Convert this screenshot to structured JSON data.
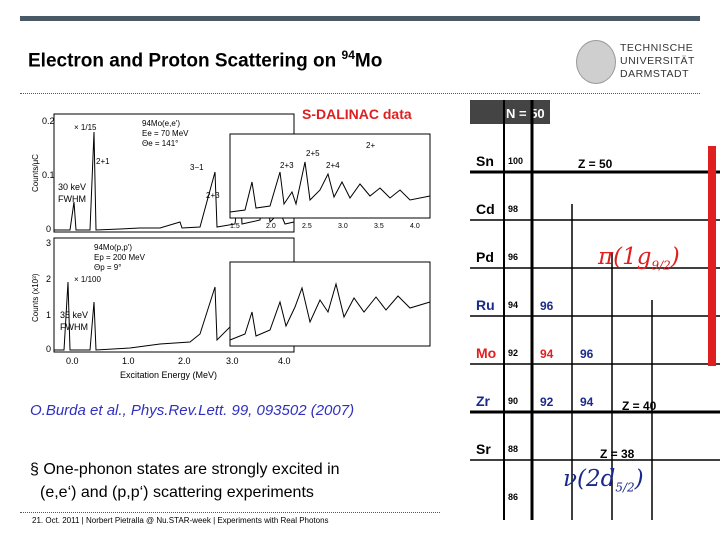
{
  "slide": {
    "title": "Electron and Proton Scattering on ",
    "title_sup": "94",
    "title_tail": "Mo",
    "logo_lines": [
      "TECHNISCHE",
      "UNIVERSITÄT",
      "DARMSTADT"
    ],
    "source_label": "S-DALINAC data",
    "citation": "O.Burda et al., Phys.Rev.Lett. 99, 093502 (2007)",
    "bullet_line1": "§ One-phonon states are strongly excited in",
    "bullet_line2": "(e,e‘) and (p,p‘) scattering experiments",
    "footer": "21. Oct. 2011 | Norbert Pietralla @ Nu.STAR-week | Experiments with Real Photons"
  },
  "spectrum": {
    "upper": {
      "reaction": "94Mo(e,e')",
      "energy": "Ee = 70 MeV",
      "angle": "Θe = 141°",
      "resolution": "30 keV",
      "fwhm": "FWHM",
      "scale": "× 1/15",
      "ylabel": "Counts/μC",
      "yticks": [
        "0.2",
        "0.1",
        "0"
      ],
      "peaks": [
        "2+1",
        "3−1",
        "2+3"
      ]
    },
    "lower": {
      "reaction": "94Mo(p,p')",
      "energy": "Ep = 200 MeV",
      "angle": "Θp = 9°",
      "resolution": "35 keV",
      "fwhm": "FWHM",
      "scale": "× 1/100",
      "ylabel": "Counts (x10³)",
      "yticks": [
        "3",
        "2",
        "1",
        "0"
      ]
    },
    "inset_upper_labels": [
      "2+5",
      "2+",
      "2+4",
      "2+3"
    ],
    "inset_xticks": [
      "1.5",
      "2.0",
      "2.5",
      "3.0",
      "3.5",
      "4.0"
    ],
    "xlabel": "Excitation Energy (MeV)",
    "xticks": [
      "0.0",
      "1.0",
      "2.0",
      "3.0",
      "4.0"
    ]
  },
  "nuclide_chart": {
    "column_header": "N = 50",
    "elements": [
      "Sn",
      "Cd",
      "Pd",
      "Ru",
      "Mo",
      "Zr",
      "Sr"
    ],
    "element_colors": [
      "#000000",
      "#000000",
      "#000000",
      "#1a2a8a",
      "#e02020",
      "#1a2a8a",
      "#000000"
    ],
    "masses_black": [
      "100",
      "98",
      "96",
      "94",
      "92",
      "90",
      "88",
      "86"
    ],
    "cells": [
      {
        "row": 3,
        "col": 1,
        "text": "96",
        "color": "#1a2a8a"
      },
      {
        "row": 4,
        "col": 1,
        "text": "94",
        "color": "#e02020"
      },
      {
        "row": 4,
        "col": 2,
        "text": "96",
        "color": "#1a2a8a"
      },
      {
        "row": 5,
        "col": 1,
        "text": "92",
        "color": "#1a2a8a"
      },
      {
        "row": 5,
        "col": 2,
        "text": "94",
        "color": "#1a2a8a"
      }
    ],
    "z_labels": [
      "Z = 50",
      "Z = 40",
      "Z = 38"
    ],
    "pi_orbital": "π(1g",
    "pi_sub": "9/2",
    "nu_orbital": "ν(2d",
    "nu_sub": "5/2"
  }
}
